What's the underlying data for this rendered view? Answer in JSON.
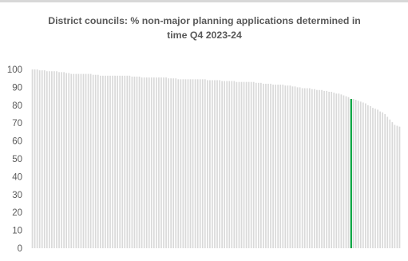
{
  "chart_data": {
    "type": "bar",
    "title_line1": "District councils: % non-major planning applications determined in",
    "title_line2": "time Q4 2023-24",
    "xlabel": "",
    "ylabel": "",
    "ylim": [
      0,
      100
    ],
    "y_ticks": [
      {
        "value": 0,
        "label": "0"
      },
      {
        "value": 10,
        "label": "10"
      },
      {
        "value": 20,
        "label": "20"
      },
      {
        "value": 30,
        "label": "30"
      },
      {
        "value": 40,
        "label": "40"
      },
      {
        "value": 50,
        "label": "50"
      },
      {
        "value": 60,
        "label": "60"
      },
      {
        "value": 70,
        "label": "70"
      },
      {
        "value": 80,
        "label": "80"
      },
      {
        "value": 90,
        "label": "90"
      },
      {
        "value": 100,
        "label": "100"
      }
    ],
    "grid": false,
    "legend": "none",
    "bar_color": "#d9d9d9",
    "highlight_color": "#00a33d",
    "highlight_index": 131,
    "values": [
      100,
      100,
      100,
      99.5,
      99.5,
      99.5,
      99,
      99,
      99,
      99,
      99,
      98.5,
      98.5,
      98.5,
      98,
      98,
      97.5,
      97.5,
      97.5,
      97.5,
      97.5,
      97.5,
      97.5,
      97.5,
      97.5,
      97,
      97,
      97,
      96.5,
      96.5,
      96.5,
      96.5,
      96.5,
      96.5,
      96.5,
      96.5,
      96.5,
      96.5,
      96.5,
      96.5,
      96.5,
      96,
      96,
      96,
      96,
      95.5,
      95.5,
      95.5,
      95.5,
      95.5,
      95.5,
      95.5,
      95.5,
      95.5,
      95.5,
      95.5,
      95,
      95,
      95,
      95,
      94.5,
      94.5,
      94.5,
      94.5,
      94.5,
      94.5,
      94.5,
      94.5,
      94.5,
      94.5,
      94.5,
      94.5,
      94,
      94,
      94,
      94,
      94,
      94,
      93.5,
      93.5,
      93.5,
      93.5,
      93.5,
      93.5,
      93,
      93,
      93,
      93,
      93,
      93,
      93,
      93,
      92.5,
      92.5,
      92.5,
      92,
      92,
      92,
      92,
      91.5,
      91.5,
      91.5,
      91.5,
      91.5,
      91,
      91,
      91,
      90.5,
      90.5,
      90,
      90,
      89.5,
      89.5,
      89.5,
      89.5,
      89,
      89,
      88.5,
      88.5,
      88.5,
      88,
      88,
      87.5,
      87.5,
      87,
      86.5,
      86.5,
      86,
      85.5,
      85,
      84.5,
      83.5,
      83.5,
      83,
      82.5,
      82,
      81.5,
      81,
      80,
      79.5,
      78.5,
      78,
      77.5,
      76.5,
      76,
      75,
      73.5,
      72,
      70.5,
      69,
      68.5,
      68
    ]
  }
}
